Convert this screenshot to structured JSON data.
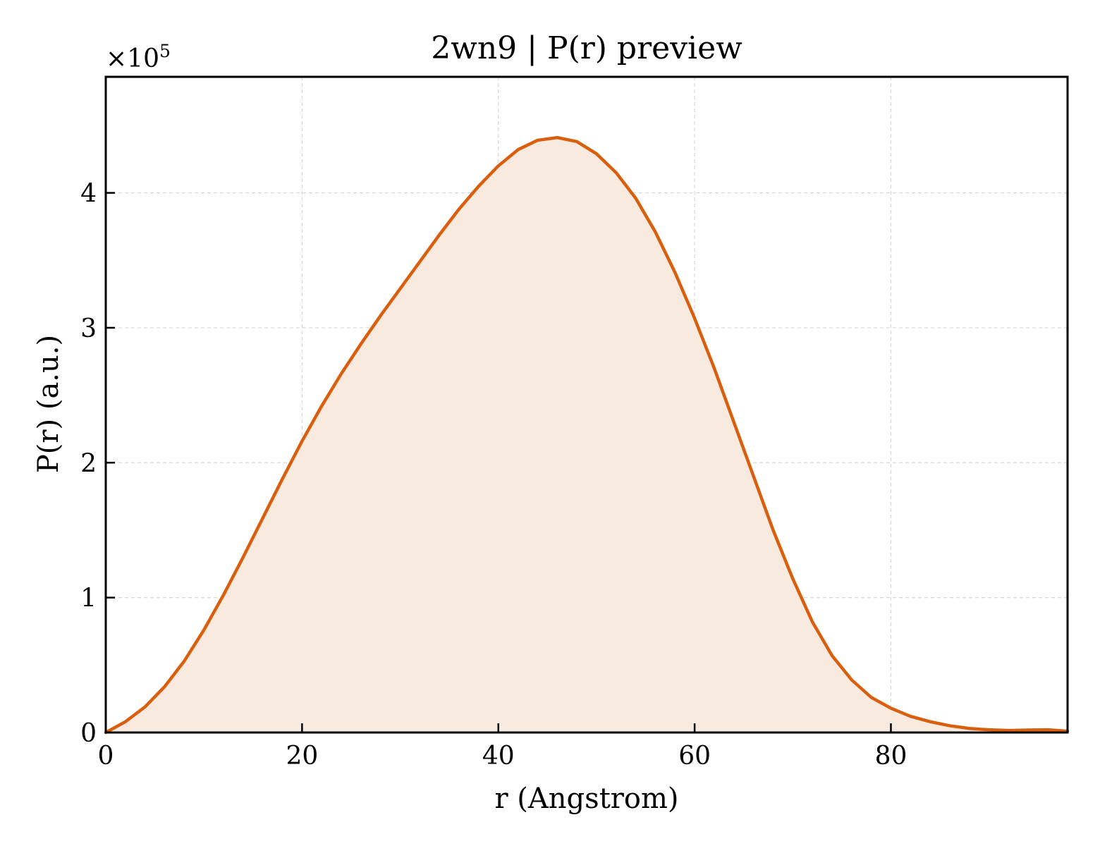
{
  "chart_data": {
    "type": "area",
    "title": "2wn9 | P(r) preview",
    "xlabel": "r (Angstrom)",
    "ylabel": "P(r) (a.u.)",
    "y_multiplier_label": "×10",
    "y_multiplier_exponent": "5",
    "xlim": [
      0,
      98
    ],
    "ylim": [
      0,
      4.86
    ],
    "x_ticks": [
      0,
      20,
      40,
      60,
      80
    ],
    "y_ticks": [
      0,
      1,
      2,
      3,
      4
    ],
    "grid": true,
    "line_color": "#D95F0E",
    "fill_color": "#F9EADF",
    "x": [
      0,
      2,
      4,
      6,
      8,
      10,
      12,
      14,
      16,
      18,
      20,
      22,
      24,
      26,
      28,
      30,
      32,
      34,
      36,
      38,
      40,
      42,
      44,
      46,
      48,
      50,
      52,
      54,
      56,
      58,
      60,
      62,
      64,
      66,
      68,
      70,
      72,
      74,
      76,
      78,
      80,
      82,
      84,
      86,
      88,
      90,
      92,
      94,
      96,
      98
    ],
    "y": [
      0,
      0.08,
      0.19,
      0.34,
      0.53,
      0.76,
      1.02,
      1.3,
      1.59,
      1.88,
      2.16,
      2.42,
      2.66,
      2.88,
      3.09,
      3.29,
      3.49,
      3.69,
      3.88,
      4.05,
      4.2,
      4.32,
      4.39,
      4.41,
      4.38,
      4.29,
      4.15,
      3.96,
      3.71,
      3.41,
      3.07,
      2.7,
      2.3,
      1.9,
      1.5,
      1.14,
      0.82,
      0.57,
      0.39,
      0.26,
      0.18,
      0.12,
      0.08,
      0.05,
      0.03,
      0.02,
      0.015,
      0.018,
      0.02,
      0.01
    ]
  }
}
